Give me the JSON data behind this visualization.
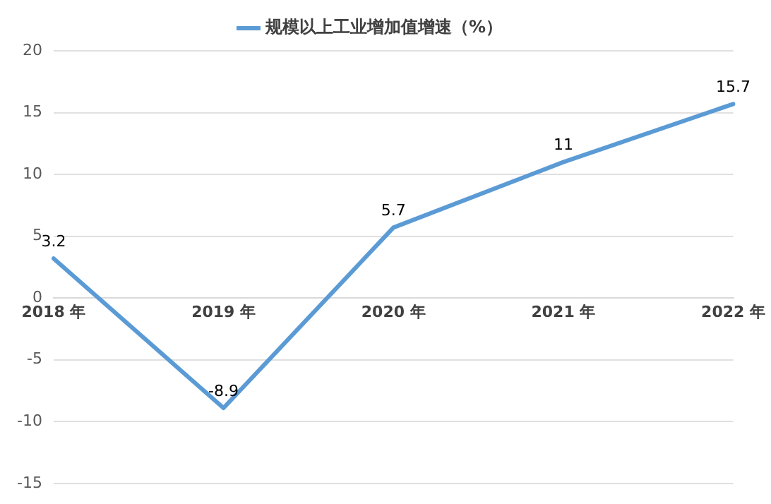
{
  "chart_data": {
    "type": "line",
    "categories": [
      "2018 年",
      "2019 年",
      "2020 年",
      "2021 年",
      "2022 年"
    ],
    "series": [
      {
        "name": "规模以上工业增加值增速（%）",
        "color": "#5b9bd5",
        "values": [
          3.2,
          -8.9,
          5.7,
          11,
          15.7
        ]
      }
    ],
    "ylim": [
      -15,
      20
    ],
    "yticks": [
      -15,
      -10,
      -5,
      0,
      5,
      10,
      15,
      20
    ],
    "grid": "y",
    "legend": "top",
    "data_labels": true,
    "marker": "none",
    "line_style": "solid"
  }
}
